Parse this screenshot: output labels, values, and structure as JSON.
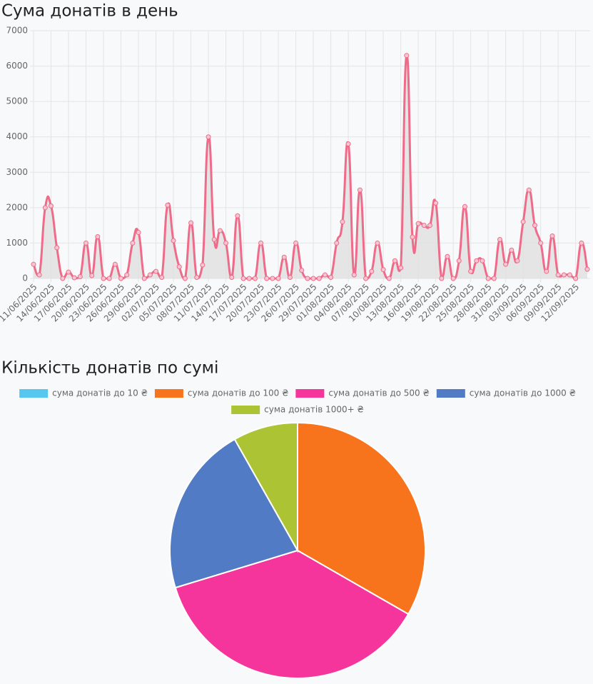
{
  "chart_data": [
    {
      "type": "line",
      "title": "Сума донатів в день",
      "categories": [
        "11/06/2025",
        null,
        null,
        "14/06/2025",
        null,
        null,
        "17/06/2025",
        null,
        null,
        "20/06/2025",
        null,
        null,
        "23/06/2025",
        null,
        null,
        "26/06/2025",
        null,
        null,
        "29/06/2025",
        null,
        null,
        "02/07/2025",
        null,
        null,
        "05/07/2025",
        null,
        null,
        "08/07/2025",
        null,
        null,
        "11/07/2025",
        null,
        null,
        "14/07/2025",
        null,
        null,
        "17/07/2025",
        null,
        null,
        "20/07/2025",
        null,
        null,
        "23/07/2025",
        null,
        null,
        "26/07/2025",
        null,
        null,
        "29/07/2025",
        null,
        null,
        "01/08/2025",
        null,
        null,
        "04/08/2025",
        null,
        null,
        "07/08/2025",
        null,
        null,
        "10/08/2025",
        null,
        null,
        "13/08/2025",
        null,
        null,
        "16/08/2025",
        null,
        null,
        "19/08/2025",
        null,
        null,
        "22/08/2025",
        null,
        null,
        "25/08/2025",
        null,
        null,
        "28/08/2025",
        null,
        null,
        "31/08/2025",
        null,
        null,
        "03/09/2025",
        null,
        null,
        "06/09/2025",
        null,
        null,
        "09/09/2025",
        null,
        null,
        "12/09/2025",
        null,
        null
      ],
      "values": [
        400,
        100,
        2000,
        2050,
        870,
        0,
        180,
        20,
        50,
        1000,
        80,
        1180,
        0,
        0,
        400,
        0,
        100,
        1000,
        1300,
        0,
        100,
        200,
        30,
        2070,
        1070,
        330,
        0,
        1570,
        30,
        380,
        4000,
        1100,
        1350,
        1000,
        30,
        1770,
        0,
        0,
        0,
        1000,
        0,
        0,
        0,
        600,
        30,
        1000,
        230,
        0,
        0,
        0,
        100,
        30,
        1000,
        1600,
        3800,
        100,
        2500,
        0,
        200,
        1000,
        250,
        0,
        500,
        300,
        6300,
        1170,
        1550,
        1500,
        1500,
        2130,
        0,
        620,
        0,
        500,
        2030,
        200,
        500,
        500,
        0,
        0,
        1100,
        400,
        800,
        500,
        1600,
        2500,
        1500,
        1000,
        200,
        1200,
        100,
        100,
        100,
        0,
        1000,
        260
      ],
      "color": "#ef6b8a",
      "fill": "#e0e0e0",
      "ylim": [
        0,
        7000
      ],
      "yticks": [
        0,
        1000,
        2000,
        3000,
        4000,
        5000,
        6000,
        7000
      ],
      "grid": true
    },
    {
      "type": "pie",
      "title": "Кількість донатів по сумі",
      "categories": [
        "сума донатів до 10 ₴",
        "сума донатів до 100 ₴",
        "сума донатів до 500 ₴",
        "сума донатів до 1000 ₴",
        "сума донатів 1000+ ₴"
      ],
      "values": [
        0,
        33.3,
        37,
        21.5,
        8.2
      ],
      "colors": [
        "#56c8f0",
        "#f7731c",
        "#f5359b",
        "#517bc4",
        "#acc334"
      ],
      "legend": "top"
    }
  ]
}
